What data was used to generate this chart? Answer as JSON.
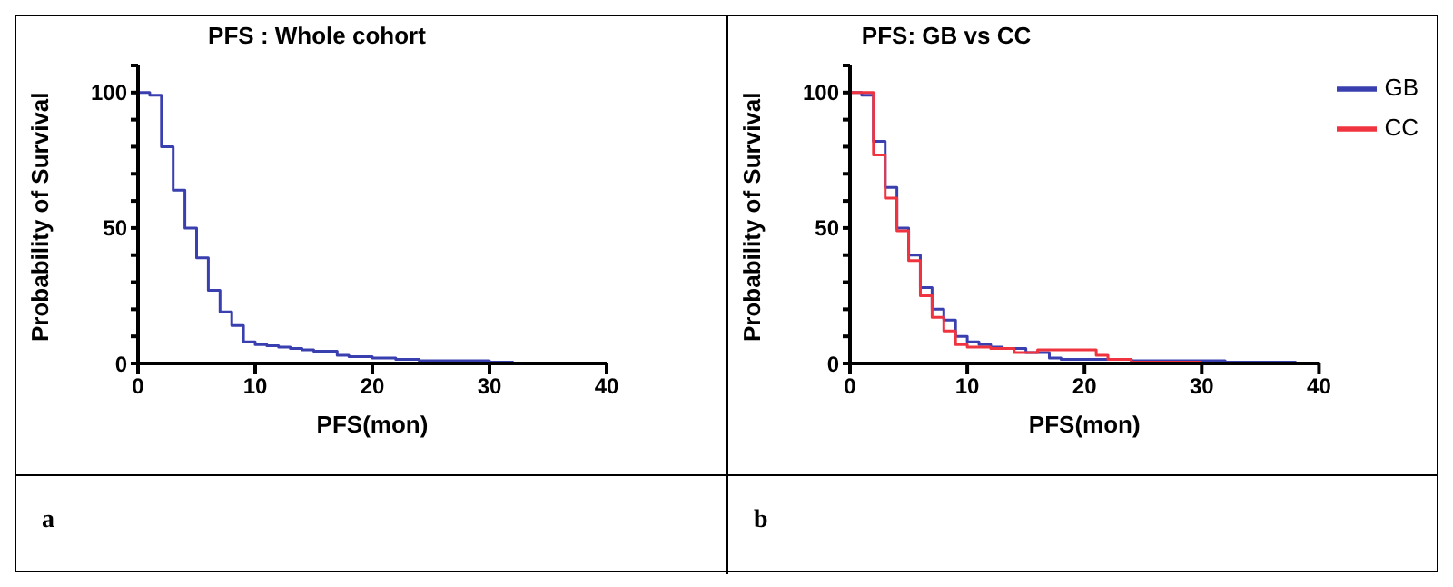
{
  "chart_data": [
    {
      "type": "step",
      "title": "PFS : Whole cohort",
      "xlabel": "PFS(mon)",
      "ylabel": "Probability of Survival",
      "xlim": [
        0,
        40
      ],
      "xticks": [
        0,
        10,
        20,
        30,
        40
      ],
      "ylim": [
        0,
        110
      ],
      "yticks": [
        0,
        {
          "value": 10,
          "label": null
        },
        {
          "value": 20,
          "label": null
        },
        {
          "value": 30,
          "label": null
        },
        {
          "value": 40,
          "label": null
        },
        50,
        {
          "value": 60,
          "label": null
        },
        {
          "value": 70,
          "label": null
        },
        {
          "value": 80,
          "label": null
        },
        {
          "value": 90,
          "label": null
        },
        100,
        {
          "value": 110,
          "label": null
        }
      ],
      "legend": false,
      "marker": "none",
      "line_style": "solid",
      "annotations": [
        "a"
      ],
      "series": [
        {
          "color": "#3a3fb0",
          "x": [
            0,
            1,
            2,
            3,
            4,
            5,
            6,
            7,
            8,
            9,
            10,
            11,
            12,
            13,
            14,
            15,
            17,
            18,
            20,
            22,
            24,
            30,
            32,
            38
          ],
          "values": [
            100,
            99,
            80,
            64,
            50,
            39,
            27,
            19,
            14,
            8,
            7,
            6.5,
            6,
            5.5,
            5,
            4.5,
            3,
            2.5,
            2,
            1.5,
            1,
            0.5,
            0,
            0
          ]
        }
      ]
    },
    {
      "type": "step",
      "title": "PFS: GB vs CC",
      "xlabel": "PFS(mon)",
      "ylabel": "Probability of Survival",
      "xlim": [
        0,
        40
      ],
      "xticks": [
        0,
        10,
        20,
        30,
        40
      ],
      "ylim": [
        0,
        110
      ],
      "yticks": [
        0,
        {
          "value": 10,
          "label": null
        },
        {
          "value": 20,
          "label": null
        },
        {
          "value": 30,
          "label": null
        },
        {
          "value": 40,
          "label": null
        },
        50,
        {
          "value": 60,
          "label": null
        },
        {
          "value": 70,
          "label": null
        },
        {
          "value": 80,
          "label": null
        },
        {
          "value": 90,
          "label": null
        },
        100,
        {
          "value": 110,
          "label": null
        }
      ],
      "legend": "top right",
      "marker": "none",
      "line_style": "solid",
      "annotations": [
        "b"
      ],
      "series": [
        {
          "name": "GB",
          "color": "#3a3fb0",
          "x": [
            0,
            1,
            2,
            3,
            4,
            5,
            6,
            7,
            8,
            9,
            10,
            11,
            12,
            13,
            15,
            17,
            18,
            22,
            24,
            32,
            38
          ],
          "values": [
            100,
            99,
            82,
            65,
            50,
            40,
            28,
            20,
            16,
            10,
            8,
            7,
            6,
            5.5,
            4,
            2,
            1.5,
            1.5,
            1,
            0.5,
            0
          ]
        },
        {
          "name": "CC",
          "color": "#f0343f",
          "x": [
            0,
            2,
            3,
            4,
            5,
            6,
            7,
            8,
            9,
            10,
            12,
            14,
            16,
            21,
            22,
            24,
            30
          ],
          "values": [
            100,
            77,
            61,
            49,
            38,
            25,
            17,
            12,
            7,
            6,
            5.5,
            4,
            5,
            3,
            1.5,
            0.5,
            0.5
          ]
        }
      ]
    }
  ]
}
